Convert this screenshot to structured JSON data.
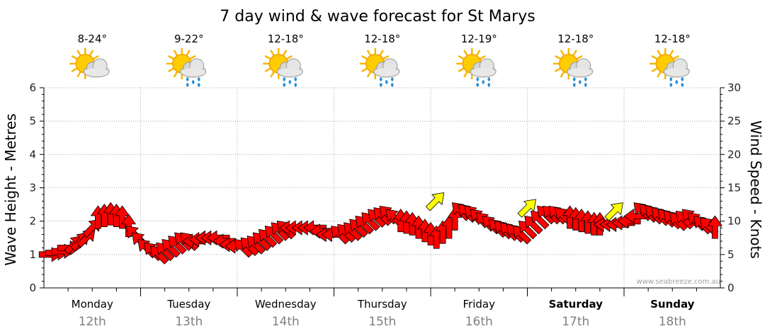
{
  "title": "7 day wind & wave forecast for St Marys",
  "watermark": "www.seabreeze.com.au",
  "colors": {
    "arrow_primary": "#ff0000",
    "arrow_highlight": "#ffff00",
    "arrow_outline": "#000000",
    "grid": "#999999"
  },
  "days": [
    {
      "name": "Monday",
      "date": "12th",
      "temp": "8-24°",
      "icon": "partly-cloudy-icon",
      "bold": false
    },
    {
      "name": "Tuesday",
      "date": "13th",
      "temp": "9-22°",
      "icon": "sun-cloud-rain-icon",
      "bold": false
    },
    {
      "name": "Wednesday",
      "date": "14th",
      "temp": "12-18°",
      "icon": "sun-cloud-rain-icon",
      "bold": false
    },
    {
      "name": "Thursday",
      "date": "15th",
      "temp": "12-18°",
      "icon": "sun-cloud-rain-icon",
      "bold": false
    },
    {
      "name": "Friday",
      "date": "16th",
      "temp": "12-19°",
      "icon": "sun-cloud-rain-icon",
      "bold": false
    },
    {
      "name": "Saturday",
      "date": "17th",
      "temp": "12-18°",
      "icon": "sun-cloud-rain-icon",
      "bold": true
    },
    {
      "name": "Sunday",
      "date": "18th",
      "temp": "12-18°",
      "icon": "sun-cloud-rain-icon",
      "bold": true
    }
  ],
  "chart_data": {
    "type": "line",
    "title": "7 day wind & wave forecast for St Marys",
    "ylabel_left": "Wave Height - Metres",
    "ylabel_right": "Wind Speed - Knots",
    "ylim_left": [
      0,
      6
    ],
    "ylim_right": [
      0,
      30
    ],
    "yticks_left": [
      "0",
      "1",
      "2",
      "3",
      "4",
      "5",
      "6"
    ],
    "yticks_right": [
      "0",
      "5",
      "10",
      "15",
      "20",
      "25",
      "30"
    ],
    "grid": true,
    "x_unit": "days from start of Monday",
    "series": [
      {
        "name": "Wind",
        "x": [
          0.0,
          0.13,
          0.25,
          0.38,
          0.5,
          0.63,
          0.75,
          0.88,
          1.0,
          1.13,
          1.25,
          1.38,
          1.5,
          1.63,
          1.75,
          1.88,
          2.0,
          2.13,
          2.25,
          2.38,
          2.5,
          2.63,
          2.75,
          2.88,
          3.0,
          3.13,
          3.25,
          3.38,
          3.5,
          3.63,
          3.75,
          3.88,
          4.0,
          4.13,
          4.25,
          4.38,
          4.5,
          4.63,
          4.75,
          4.88,
          5.0,
          5.13,
          5.25,
          5.38,
          5.5,
          5.63,
          5.75,
          5.88,
          6.0,
          6.13,
          6.25,
          6.38,
          6.5,
          6.63,
          6.75,
          6.88
        ],
        "knots": [
          5,
          5.5,
          6.5,
          7.5,
          10.5,
          11,
          10.5,
          8,
          6,
          5,
          6,
          7,
          7,
          7.5,
          7.5,
          6.5,
          6,
          6.5,
          7.5,
          8.5,
          9,
          9,
          9,
          8,
          8,
          8.5,
          9.5,
          10.5,
          11,
          10,
          9.5,
          8.5,
          7.5,
          9,
          11.5,
          11,
          10,
          9,
          8.5,
          8,
          9.5,
          11,
          11,
          10.5,
          10,
          9.5,
          9.5,
          9.5,
          10,
          11.5,
          11,
          10.5,
          10,
          10.5,
          9.5,
          9
        ],
        "direction": [
          "W",
          "W",
          "SW",
          "SW",
          "S",
          "S",
          "S",
          "SE",
          "SE",
          "SE",
          "SE",
          "SE",
          "E",
          "E",
          "E",
          "E",
          "SE",
          "SE",
          "SE",
          "SE",
          "E",
          "E",
          "E",
          "E",
          "SE",
          "SE",
          "SE",
          "SE",
          "SE",
          "S",
          "S",
          "S",
          "S",
          "S",
          "SE",
          "SE",
          "SE",
          "SE",
          "SE",
          "SE",
          "SE",
          "SE",
          "SE",
          "S",
          "S",
          "S",
          "E",
          "E",
          "E",
          "SE",
          "SE",
          "SE",
          "SE",
          "SE",
          "SE",
          "S"
        ],
        "wave_m": [
          1.0,
          1.1,
          1.3,
          1.5,
          2.1,
          2.2,
          2.1,
          1.6,
          1.2,
          1.0,
          1.2,
          1.4,
          1.4,
          1.5,
          1.5,
          1.3,
          1.2,
          1.3,
          1.5,
          1.7,
          1.8,
          1.8,
          1.8,
          1.6,
          1.6,
          1.7,
          1.9,
          2.1,
          2.2,
          2.0,
          1.9,
          1.7,
          1.5,
          1.8,
          2.3,
          2.2,
          2.0,
          1.8,
          1.7,
          1.6,
          1.9,
          2.2,
          2.2,
          2.1,
          2.0,
          1.9,
          1.9,
          1.9,
          2.0,
          2.3,
          2.2,
          2.1,
          2.0,
          2.1,
          1.9,
          1.8
        ]
      }
    ],
    "highlighted_arrows": [
      {
        "x": 4.05,
        "knots": 13.0,
        "direction": "SW"
      },
      {
        "x": 5.0,
        "knots": 12.0,
        "direction": "SW"
      },
      {
        "x": 5.9,
        "knots": 11.5,
        "direction": "SW"
      }
    ]
  }
}
